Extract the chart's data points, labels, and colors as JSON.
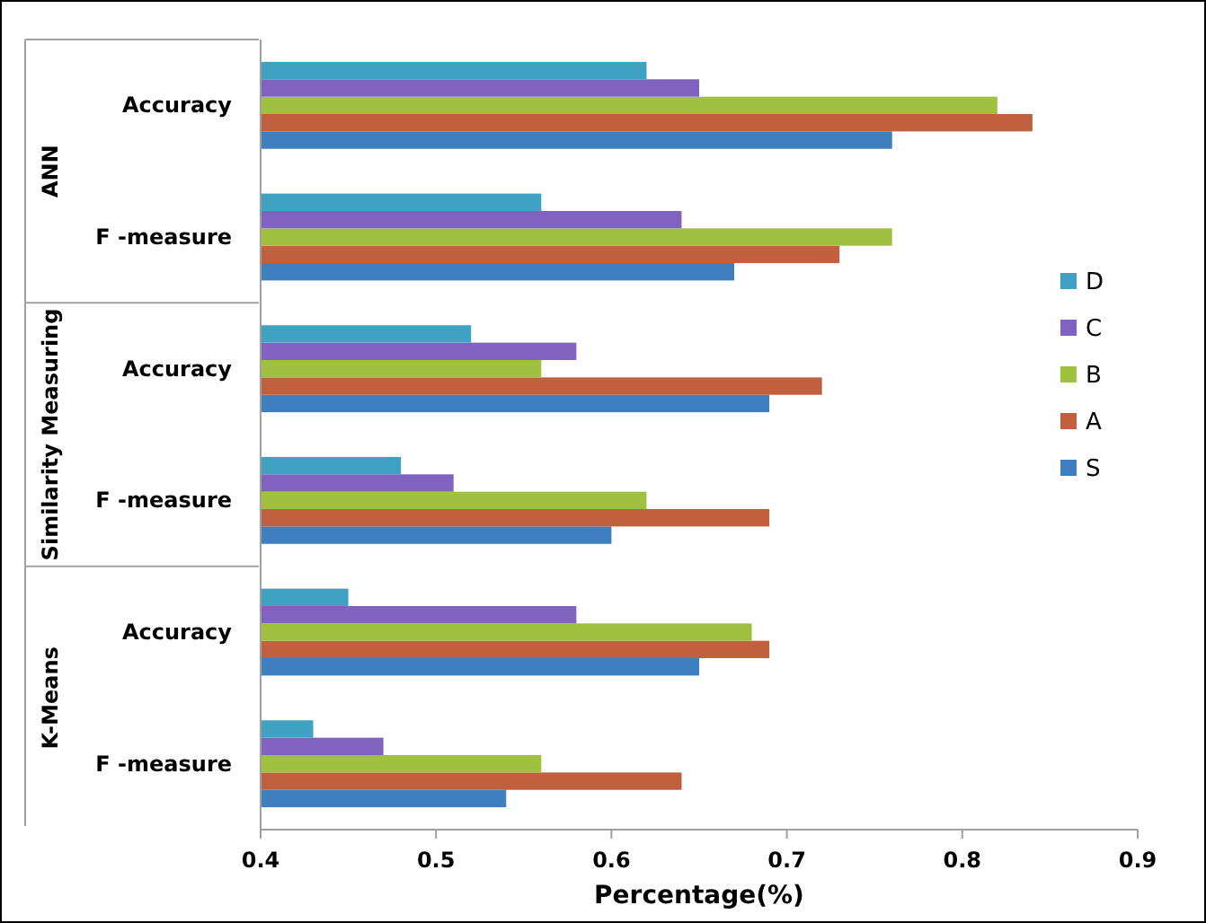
{
  "chart_data": {
    "type": "bar",
    "orientation": "horizontal",
    "xlabel": "Percentage(%)",
    "categories": [
      "Accuracy",
      "F -measure",
      "Accuracy",
      "F -measure",
      "Accuracy",
      "F -measure"
    ],
    "annotations": [
      "ANN",
      "Similarity Measuring",
      "K-Means"
    ],
    "series": [
      {
        "name": "S",
        "color": "#3f7fbf",
        "values": [
          0.76,
          0.67,
          0.69,
          0.6,
          0.65,
          0.54
        ]
      },
      {
        "name": "A",
        "color": "#c0603f",
        "values": [
          0.84,
          0.73,
          0.72,
          0.69,
          0.69,
          0.64
        ]
      },
      {
        "name": "B",
        "color": "#a0c040",
        "values": [
          0.82,
          0.76,
          0.56,
          0.62,
          0.68,
          0.56
        ]
      },
      {
        "name": "C",
        "color": "#8062bf",
        "values": [
          0.65,
          0.64,
          0.58,
          0.51,
          0.58,
          0.47
        ]
      },
      {
        "name": "D",
        "color": "#40a2c2",
        "values": [
          0.62,
          0.56,
          0.52,
          0.48,
          0.45,
          0.43
        ]
      }
    ],
    "xlim": [
      0.4,
      0.9
    ],
    "xticks": [
      0.4,
      0.5,
      0.6,
      0.7,
      0.8,
      0.9
    ],
    "legend": "right",
    "grid": false
  }
}
